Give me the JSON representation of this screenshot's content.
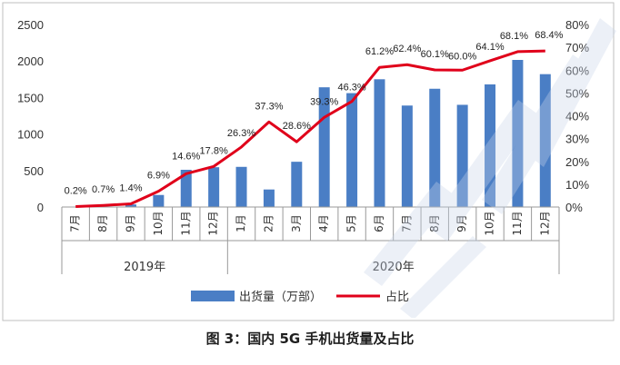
{
  "chart_data": {
    "type": "bar",
    "categories": [
      "7月",
      "8月",
      "9月",
      "10月",
      "11月",
      "12月",
      "1月",
      "2月",
      "3月",
      "4月",
      "5月",
      "6月",
      "7月",
      "8月",
      "9月",
      "10月",
      "11月",
      "12月"
    ],
    "year_groups": [
      {
        "label": "2019年",
        "count": 6
      },
      {
        "label": "2020年",
        "count": 12
      }
    ],
    "series": [
      {
        "name": "出货量（万部）",
        "type": "bar",
        "axis": "left",
        "color": "#4a7ec5",
        "values": [
          2,
          7,
          35,
          165,
          510,
          545,
          550,
          240,
          620,
          1640,
          1560,
          1750,
          1390,
          1620,
          1400,
          1680,
          2015,
          1820
        ]
      },
      {
        "name": "占比",
        "type": "line",
        "axis": "right",
        "color": "#e0001a",
        "values": [
          0.2,
          0.7,
          1.4,
          6.9,
          14.6,
          17.8,
          26.3,
          37.3,
          28.6,
          39.3,
          46.3,
          61.2,
          62.4,
          60.1,
          60.0,
          64.1,
          68.1,
          68.4
        ]
      }
    ],
    "data_labels": [
      "0.2%",
      "0.7%",
      "1.4%",
      "6.9%",
      "14.6%",
      "17.8%",
      "26.3%",
      "37.3%",
      "28.6%",
      "39.3%",
      "46.3%",
      "61.2%",
      "62.4%",
      "60.1%",
      "60.0%",
      "64.1%",
      "68.1%",
      "68.4%"
    ],
    "ylim_left": [
      0,
      2500
    ],
    "yticks_left": [
      "0",
      "500",
      "1000",
      "1500",
      "2000",
      "2500"
    ],
    "ylim_right": [
      0,
      80
    ],
    "yticks_right": [
      "0%",
      "10%",
      "20%",
      "30%",
      "40%",
      "50%",
      "60%",
      "70%",
      "80%"
    ],
    "grid": false,
    "legend_placement": "bottom-center"
  },
  "caption": "图 3：国内 5G 手机出货量及占比"
}
